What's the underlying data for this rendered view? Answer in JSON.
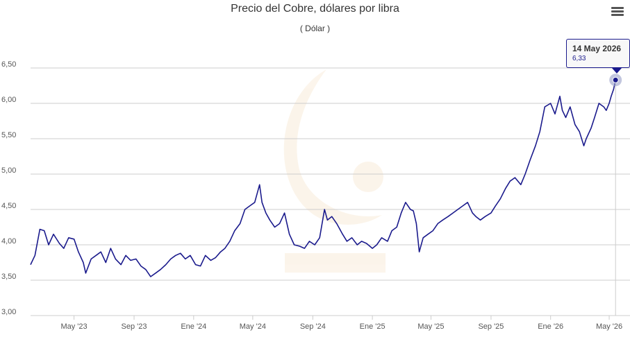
{
  "header": {
    "title": "Precio del Cobre, dólares por libra",
    "subtitle": "( Dólar )"
  },
  "toolbar": {
    "menu_icon": "hamburger-menu-icon"
  },
  "tooltip": {
    "date": "14 May 2026",
    "value": "6,33"
  },
  "colors": {
    "line": "#1a1a8c",
    "grid": "#cccccc",
    "marker_halo": "#9aa0c8"
  },
  "chart_data": {
    "type": "line",
    "title": "Precio del Cobre, dólares por libra",
    "subtitle": "( Dólar )",
    "ylim": [
      3.0,
      6.5
    ],
    "y_ticks": [
      3.0,
      3.5,
      4.0,
      4.5,
      5.0,
      5.5,
      6.0,
      6.5
    ],
    "y_tick_labels": [
      "3,00",
      "3,50",
      "4,00",
      "4,50",
      "5,00",
      "5,50",
      "6,00",
      "6,50"
    ],
    "x_tick_labels": [
      "May '23",
      "Sep '23",
      "Ene '24",
      "May '24",
      "Sep '24",
      "Ene '25",
      "May '25",
      "Sep '25",
      "Ene '26",
      "May '26"
    ],
    "x_tick_dates": [
      "2023-05-01",
      "2023-09-01",
      "2024-01-01",
      "2024-05-01",
      "2024-09-01",
      "2025-01-01",
      "2025-05-01",
      "2025-09-01",
      "2026-01-01",
      "2026-05-01"
    ],
    "x_range": [
      "2023-02-01",
      "2026-05-18"
    ],
    "grid": true,
    "legend": "none",
    "highlight": {
      "date": "2026-05-14",
      "value": 6.33
    },
    "series": [
      {
        "dates": [
          "2023-02-01",
          "2023-02-10",
          "2023-02-20",
          "2023-03-01",
          "2023-03-10",
          "2023-03-20",
          "2023-04-01",
          "2023-04-10",
          "2023-04-20",
          "2023-05-01",
          "2023-05-10",
          "2023-05-20",
          "2023-05-25",
          "2023-06-05",
          "2023-06-15",
          "2023-06-25",
          "2023-07-05",
          "2023-07-15",
          "2023-07-25",
          "2023-08-05",
          "2023-08-15",
          "2023-08-25",
          "2023-09-05",
          "2023-09-15",
          "2023-09-25",
          "2023-10-05",
          "2023-10-15",
          "2023-10-25",
          "2023-11-05",
          "2023-11-15",
          "2023-11-25",
          "2023-12-05",
          "2023-12-15",
          "2023-12-25",
          "2024-01-05",
          "2024-01-15",
          "2024-01-25",
          "2024-02-05",
          "2024-02-15",
          "2024-02-25",
          "2024-03-05",
          "2024-03-15",
          "2024-03-25",
          "2024-04-05",
          "2024-04-15",
          "2024-04-25",
          "2024-05-05",
          "2024-05-15",
          "2024-05-20",
          "2024-05-28",
          "2024-06-05",
          "2024-06-15",
          "2024-06-25",
          "2024-07-05",
          "2024-07-15",
          "2024-07-25",
          "2024-08-05",
          "2024-08-15",
          "2024-08-25",
          "2024-09-05",
          "2024-09-15",
          "2024-09-25",
          "2024-10-01",
          "2024-10-10",
          "2024-10-20",
          "2024-11-01",
          "2024-11-10",
          "2024-11-20",
          "2024-12-01",
          "2024-12-10",
          "2024-12-20",
          "2025-01-01",
          "2025-01-10",
          "2025-01-20",
          "2025-02-01",
          "2025-02-10",
          "2025-02-20",
          "2025-03-01",
          "2025-03-10",
          "2025-03-20",
          "2025-03-26",
          "2025-04-01",
          "2025-04-07",
          "2025-04-15",
          "2025-04-25",
          "2025-05-05",
          "2025-05-15",
          "2025-05-25",
          "2025-06-05",
          "2025-06-15",
          "2025-06-25",
          "2025-07-05",
          "2025-07-15",
          "2025-07-25",
          "2025-08-01",
          "2025-08-10",
          "2025-08-20",
          "2025-09-01",
          "2025-09-10",
          "2025-09-20",
          "2025-10-01",
          "2025-10-10",
          "2025-10-20",
          "2025-11-01",
          "2025-11-10",
          "2025-11-20",
          "2025-12-01",
          "2025-12-10",
          "2025-12-20",
          "2026-01-01",
          "2026-01-10",
          "2026-01-20",
          "2026-01-25",
          "2026-02-01",
          "2026-02-10",
          "2026-02-20",
          "2026-03-01",
          "2026-03-10",
          "2026-03-15",
          "2026-03-25",
          "2026-04-01",
          "2026-04-10",
          "2026-04-20",
          "2026-04-25",
          "2026-05-01",
          "2026-05-05",
          "2026-05-10",
          "2026-05-14"
        ],
        "values": [
          3.72,
          3.85,
          4.22,
          4.2,
          4.0,
          4.15,
          4.02,
          3.95,
          4.1,
          4.08,
          3.9,
          3.75,
          3.6,
          3.8,
          3.85,
          3.9,
          3.75,
          3.95,
          3.8,
          3.72,
          3.85,
          3.78,
          3.8,
          3.7,
          3.65,
          3.55,
          3.6,
          3.65,
          3.72,
          3.8,
          3.85,
          3.88,
          3.8,
          3.85,
          3.72,
          3.7,
          3.85,
          3.78,
          3.82,
          3.9,
          3.95,
          4.05,
          4.2,
          4.3,
          4.5,
          4.55,
          4.6,
          4.85,
          4.6,
          4.45,
          4.35,
          4.25,
          4.3,
          4.45,
          4.15,
          4.0,
          3.98,
          3.95,
          4.05,
          4.0,
          4.1,
          4.5,
          4.35,
          4.4,
          4.3,
          4.15,
          4.05,
          4.1,
          4.0,
          4.05,
          4.02,
          3.95,
          4.0,
          4.1,
          4.05,
          4.2,
          4.25,
          4.45,
          4.6,
          4.5,
          4.48,
          4.3,
          3.9,
          4.1,
          4.15,
          4.2,
          4.3,
          4.35,
          4.4,
          4.45,
          4.5,
          4.55,
          4.6,
          4.45,
          4.4,
          4.35,
          4.4,
          4.45,
          4.55,
          4.65,
          4.8,
          4.9,
          4.95,
          4.85,
          5.0,
          5.2,
          5.4,
          5.6,
          5.95,
          6.0,
          5.85,
          6.1,
          5.9,
          5.8,
          5.95,
          5.7,
          5.6,
          5.4,
          5.5,
          5.65,
          5.8,
          6.0,
          5.95,
          5.9,
          6.0,
          6.1,
          6.2,
          6.33
        ]
      }
    ]
  }
}
